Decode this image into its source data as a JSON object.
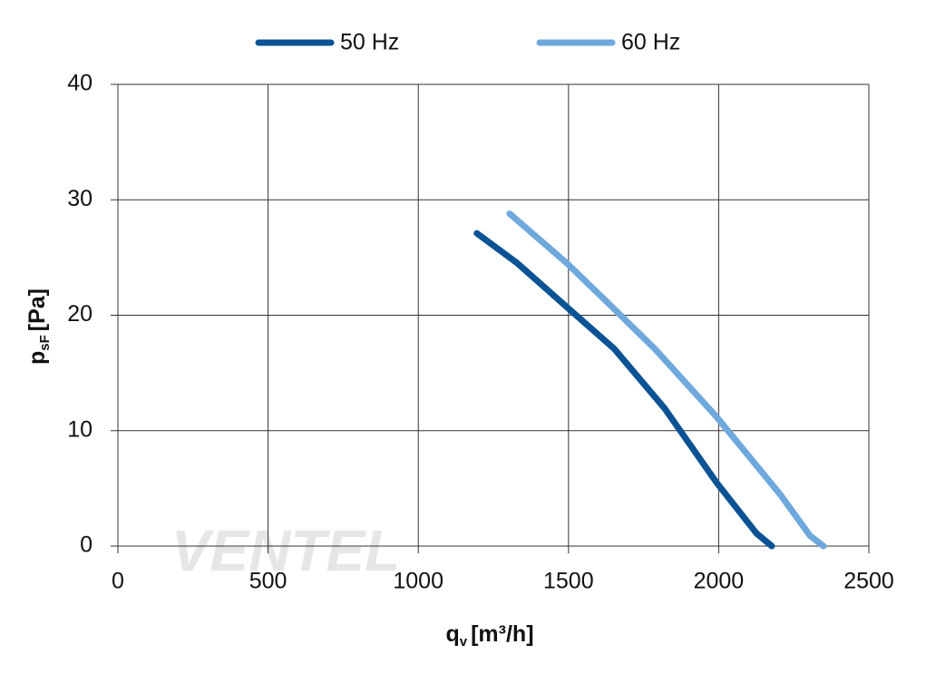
{
  "chart_data": {
    "type": "line",
    "x_label": {
      "main": "q",
      "sub": "v",
      "unit": "[m³/h]"
    },
    "y_label": {
      "main": "p",
      "sub": "sF",
      "unit": "[Pa]"
    },
    "watermark": "VENTEL",
    "legend": "top",
    "grid": true,
    "xlim": [
      0,
      2500
    ],
    "xticks": [
      0,
      500,
      1000,
      1500,
      2000,
      2500
    ],
    "ylim": [
      0,
      40
    ],
    "yticks": [
      0,
      10,
      20,
      30,
      40
    ],
    "series": [
      {
        "name": "50 Hz",
        "color": "#0b5394",
        "x": [
          1195,
          1330,
          1495,
          1652,
          1821,
          1993,
          2126,
          2177
        ],
        "values": [
          27.1,
          24.5,
          20.7,
          17.1,
          11.9,
          5.5,
          1.1,
          0
        ]
      },
      {
        "name": "60 Hz",
        "color": "#6fa8dc",
        "x": [
          1304,
          1495,
          1630,
          1787,
          1993,
          2204,
          2304,
          2349
        ],
        "values": [
          28.8,
          24.5,
          21.1,
          17.1,
          11.2,
          4.5,
          0.9,
          0
        ]
      }
    ]
  }
}
